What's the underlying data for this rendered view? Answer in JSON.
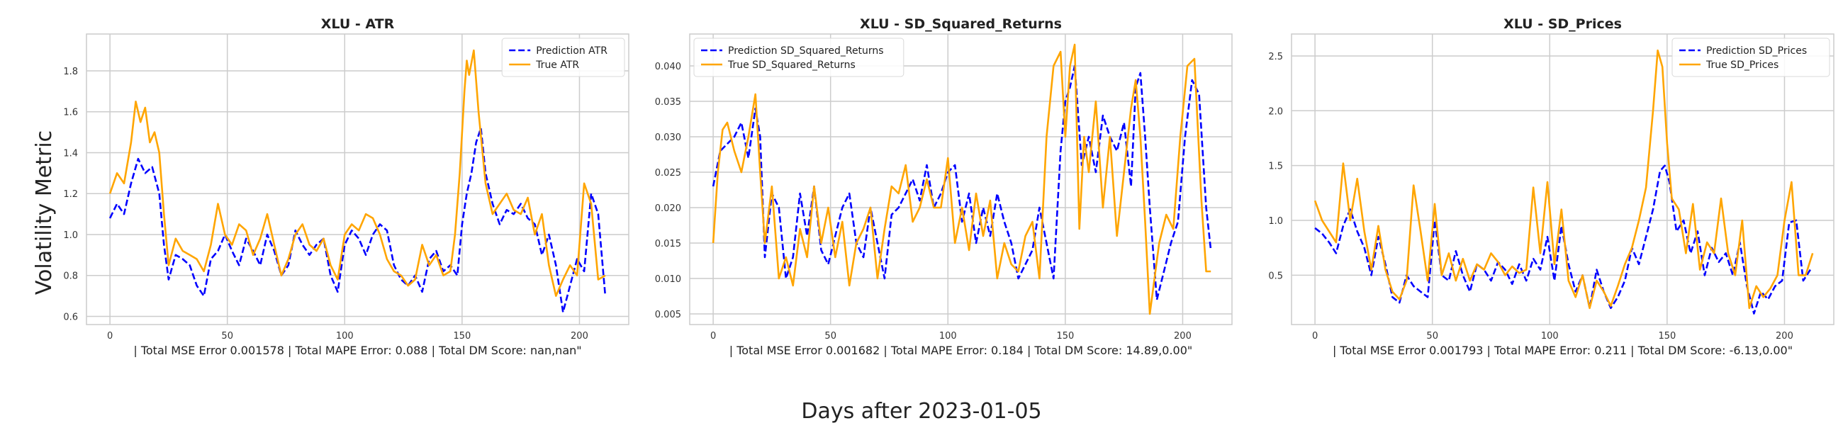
{
  "figure": {
    "ylabel": "Volatility Metric",
    "xlabel": "Days after 2023-01-05"
  },
  "chart_data": [
    {
      "type": "line",
      "title": "XLU - ATR",
      "xlabel": "| Total MSE Error 0.001578 | Total MAPE Error: 0.088 | Total DM Score: nan,nan\"",
      "xlim": [
        -10,
        221
      ],
      "ylim": [
        0.56,
        1.98
      ],
      "xticks": [
        0,
        50,
        100,
        150,
        200
      ],
      "yticks": [
        0.6,
        0.8,
        1.0,
        1.2,
        1.4,
        1.6,
        1.8
      ],
      "tick_format": "1",
      "grid": true,
      "legend_position": "top-right",
      "series": [
        {
          "name": "Prediction ATR",
          "color": "#0000ff",
          "style": "dashed",
          "x": [
            0,
            3,
            6,
            9,
            12,
            15,
            18,
            21,
            23,
            25,
            28,
            31,
            34,
            37,
            40,
            43,
            46,
            49,
            52,
            55,
            58,
            61,
            64,
            67,
            70,
            73,
            76,
            79,
            82,
            85,
            88,
            91,
            94,
            97,
            100,
            103,
            106,
            109,
            112,
            115,
            118,
            121,
            124,
            127,
            130,
            133,
            136,
            139,
            142,
            145,
            148,
            150,
            152,
            154,
            156,
            158,
            160,
            163,
            166,
            169,
            172,
            175,
            178,
            181,
            184,
            187,
            190,
            193,
            196,
            199,
            202,
            205,
            208,
            211
          ],
          "y": [
            1.08,
            1.15,
            1.1,
            1.25,
            1.37,
            1.3,
            1.33,
            1.2,
            0.95,
            0.78,
            0.9,
            0.88,
            0.85,
            0.75,
            0.7,
            0.88,
            0.92,
            1.0,
            0.92,
            0.85,
            0.98,
            0.92,
            0.85,
            1.0,
            0.92,
            0.8,
            0.85,
            1.02,
            0.95,
            0.9,
            0.95,
            0.98,
            0.8,
            0.72,
            0.95,
            1.02,
            0.98,
            0.9,
            1.0,
            1.05,
            1.02,
            0.85,
            0.78,
            0.75,
            0.8,
            0.72,
            0.88,
            0.92,
            0.82,
            0.85,
            0.8,
            1.05,
            1.2,
            1.3,
            1.45,
            1.52,
            1.3,
            1.15,
            1.05,
            1.12,
            1.1,
            1.15,
            1.08,
            1.05,
            0.9,
            1.0,
            0.85,
            0.62,
            0.75,
            0.88,
            0.82,
            1.2,
            1.1,
            0.7
          ]
        },
        {
          "name": "True ATR",
          "color": "#ffa500",
          "style": "solid",
          "x": [
            0,
            3,
            6,
            9,
            11,
            13,
            15,
            17,
            19,
            21,
            23,
            25,
            28,
            31,
            34,
            37,
            40,
            43,
            46,
            49,
            52,
            55,
            58,
            61,
            64,
            67,
            70,
            73,
            76,
            79,
            82,
            85,
            88,
            91,
            94,
            97,
            100,
            103,
            106,
            109,
            112,
            115,
            118,
            121,
            124,
            127,
            130,
            133,
            136,
            139,
            142,
            145,
            147,
            149,
            151,
            152,
            153,
            155,
            157,
            160,
            163,
            166,
            169,
            172,
            175,
            178,
            181,
            184,
            187,
            190,
            193,
            196,
            199,
            202,
            205,
            208,
            211
          ],
          "y": [
            1.2,
            1.3,
            1.25,
            1.45,
            1.65,
            1.55,
            1.62,
            1.45,
            1.5,
            1.4,
            1.1,
            0.85,
            0.98,
            0.92,
            0.9,
            0.88,
            0.82,
            0.95,
            1.15,
            1.0,
            0.95,
            1.05,
            1.02,
            0.9,
            0.98,
            1.1,
            0.95,
            0.8,
            0.88,
            1.0,
            1.05,
            0.95,
            0.92,
            0.98,
            0.85,
            0.78,
            1.0,
            1.05,
            1.02,
            1.1,
            1.08,
            1.0,
            0.88,
            0.82,
            0.8,
            0.75,
            0.78,
            0.95,
            0.85,
            0.9,
            0.8,
            0.82,
            1.0,
            1.3,
            1.7,
            1.85,
            1.78,
            1.9,
            1.6,
            1.25,
            1.1,
            1.15,
            1.2,
            1.12,
            1.1,
            1.18,
            1.0,
            1.1,
            0.85,
            0.7,
            0.78,
            0.85,
            0.8,
            1.25,
            1.15,
            0.78,
            0.8
          ]
        }
      ]
    },
    {
      "type": "line",
      "title": "XLU - SD_Squared_Returns",
      "xlabel": "| Total MSE Error 0.001682 | Total MAPE Error: 0.184 | Total DM Score: 14.89,0.00\"",
      "xlim": [
        -10,
        221
      ],
      "ylim": [
        0.0035,
        0.0445
      ],
      "xticks": [
        0,
        50,
        100,
        150,
        200
      ],
      "yticks": [
        0.005,
        0.01,
        0.015,
        0.02,
        0.025,
        0.03,
        0.035,
        0.04
      ],
      "tick_format": "3",
      "grid": true,
      "legend_position": "top-left",
      "series": [
        {
          "name": "Prediction SD_Squared_Returns",
          "color": "#0000ff",
          "style": "dashed",
          "x": [
            0,
            3,
            6,
            9,
            12,
            15,
            18,
            20,
            22,
            25,
            28,
            31,
            34,
            37,
            40,
            43,
            46,
            49,
            52,
            55,
            58,
            61,
            64,
            67,
            70,
            73,
            76,
            79,
            82,
            85,
            88,
            91,
            94,
            97,
            100,
            103,
            106,
            109,
            112,
            115,
            118,
            121,
            124,
            127,
            130,
            133,
            136,
            139,
            142,
            145,
            148,
            150,
            152,
            154,
            157,
            160,
            163,
            166,
            169,
            172,
            175,
            178,
            180,
            182,
            184,
            186,
            189,
            192,
            195,
            198,
            201,
            204,
            207,
            210,
            212
          ],
          "y": [
            0.023,
            0.028,
            0.029,
            0.03,
            0.032,
            0.027,
            0.034,
            0.03,
            0.013,
            0.022,
            0.02,
            0.01,
            0.013,
            0.022,
            0.016,
            0.023,
            0.014,
            0.012,
            0.016,
            0.02,
            0.022,
            0.015,
            0.013,
            0.02,
            0.015,
            0.01,
            0.019,
            0.02,
            0.022,
            0.024,
            0.021,
            0.026,
            0.02,
            0.022,
            0.025,
            0.026,
            0.018,
            0.022,
            0.015,
            0.02,
            0.016,
            0.022,
            0.018,
            0.015,
            0.01,
            0.012,
            0.014,
            0.02,
            0.015,
            0.01,
            0.028,
            0.035,
            0.037,
            0.04,
            0.026,
            0.03,
            0.025,
            0.033,
            0.03,
            0.028,
            0.032,
            0.023,
            0.037,
            0.039,
            0.03,
            0.02,
            0.007,
            0.011,
            0.015,
            0.018,
            0.03,
            0.038,
            0.036,
            0.02,
            0.014
          ]
        },
        {
          "name": "True SD_Squared_Returns",
          "color": "#ffa500",
          "style": "solid",
          "x": [
            0,
            2,
            4,
            6,
            9,
            12,
            15,
            18,
            20,
            22,
            25,
            28,
            31,
            34,
            37,
            40,
            43,
            46,
            49,
            52,
            55,
            58,
            61,
            64,
            67,
            70,
            73,
            76,
            79,
            82,
            85,
            88,
            91,
            94,
            97,
            100,
            103,
            106,
            109,
            112,
            115,
            118,
            121,
            124,
            127,
            130,
            133,
            136,
            139,
            142,
            145,
            148,
            150,
            152,
            154,
            156,
            158,
            160,
            163,
            166,
            169,
            172,
            175,
            178,
            180,
            182,
            184,
            186,
            188,
            190,
            193,
            196,
            199,
            202,
            205,
            208,
            210,
            212
          ],
          "y": [
            0.015,
            0.025,
            0.031,
            0.032,
            0.028,
            0.025,
            0.03,
            0.036,
            0.025,
            0.015,
            0.023,
            0.01,
            0.013,
            0.009,
            0.017,
            0.013,
            0.023,
            0.015,
            0.02,
            0.013,
            0.018,
            0.009,
            0.015,
            0.017,
            0.02,
            0.01,
            0.017,
            0.023,
            0.022,
            0.026,
            0.018,
            0.02,
            0.024,
            0.02,
            0.02,
            0.027,
            0.015,
            0.02,
            0.014,
            0.022,
            0.016,
            0.021,
            0.01,
            0.015,
            0.012,
            0.011,
            0.016,
            0.018,
            0.01,
            0.03,
            0.04,
            0.042,
            0.03,
            0.04,
            0.043,
            0.017,
            0.03,
            0.025,
            0.035,
            0.02,
            0.03,
            0.016,
            0.025,
            0.034,
            0.038,
            0.03,
            0.018,
            0.005,
            0.01,
            0.015,
            0.019,
            0.017,
            0.03,
            0.04,
            0.041,
            0.021,
            0.011,
            0.011
          ]
        }
      ]
    },
    {
      "type": "line",
      "title": "XLU - SD_Prices",
      "xlabel": "| Total MSE Error 0.001793 | Total MAPE Error: 0.211 | Total DM Score: -6.13,0.00\"",
      "xlim": [
        -10,
        221
      ],
      "ylim": [
        0.05,
        2.7
      ],
      "xticks": [
        0,
        50,
        100,
        150,
        200
      ],
      "yticks": [
        0.5,
        1.0,
        1.5,
        2.0,
        2.5
      ],
      "tick_format": "1",
      "grid": true,
      "legend_position": "top-right",
      "series": [
        {
          "name": "Prediction SD_Prices",
          "color": "#0000ff",
          "style": "dashed",
          "x": [
            0,
            3,
            6,
            9,
            12,
            15,
            18,
            21,
            24,
            27,
            30,
            33,
            36,
            39,
            42,
            45,
            48,
            51,
            54,
            57,
            60,
            63,
            66,
            69,
            72,
            75,
            78,
            81,
            84,
            87,
            90,
            93,
            96,
            99,
            102,
            105,
            108,
            111,
            114,
            117,
            120,
            123,
            126,
            129,
            132,
            135,
            138,
            141,
            144,
            147,
            149,
            151,
            154,
            157,
            160,
            163,
            166,
            169,
            172,
            175,
            178,
            181,
            184,
            187,
            190,
            193,
            196,
            199,
            202,
            205,
            208,
            211
          ],
          "y": [
            0.93,
            0.88,
            0.8,
            0.7,
            0.95,
            1.1,
            0.9,
            0.75,
            0.5,
            0.85,
            0.6,
            0.3,
            0.25,
            0.5,
            0.4,
            0.35,
            0.3,
            1.0,
            0.5,
            0.45,
            0.72,
            0.5,
            0.35,
            0.6,
            0.55,
            0.45,
            0.62,
            0.55,
            0.42,
            0.6,
            0.45,
            0.65,
            0.55,
            0.85,
            0.45,
            0.95,
            0.6,
            0.35,
            0.5,
            0.2,
            0.55,
            0.35,
            0.2,
            0.3,
            0.45,
            0.75,
            0.6,
            0.85,
            1.1,
            1.45,
            1.5,
            1.35,
            0.9,
            1.0,
            0.7,
            0.9,
            0.5,
            0.75,
            0.62,
            0.7,
            0.5,
            0.8,
            0.4,
            0.15,
            0.35,
            0.28,
            0.4,
            0.45,
            0.98,
            1.0,
            0.45,
            0.55
          ]
        },
        {
          "name": "True SD_Prices",
          "color": "#ffa500",
          "style": "solid",
          "x": [
            0,
            3,
            6,
            9,
            12,
            15,
            18,
            21,
            24,
            27,
            30,
            33,
            36,
            39,
            42,
            45,
            48,
            51,
            54,
            57,
            60,
            63,
            66,
            69,
            72,
            75,
            78,
            81,
            84,
            87,
            90,
            93,
            96,
            99,
            102,
            105,
            108,
            111,
            114,
            117,
            120,
            123,
            126,
            129,
            132,
            135,
            138,
            141,
            144,
            146,
            148,
            150,
            152,
            155,
            158,
            161,
            164,
            167,
            170,
            173,
            176,
            179,
            182,
            185,
            188,
            191,
            194,
            197,
            200,
            203,
            206,
            209,
            212
          ],
          "y": [
            1.18,
            1.0,
            0.9,
            0.8,
            1.52,
            1.0,
            1.38,
            0.9,
            0.55,
            0.95,
            0.55,
            0.35,
            0.28,
            0.45,
            1.32,
            0.9,
            0.45,
            1.15,
            0.5,
            0.7,
            0.45,
            0.65,
            0.45,
            0.6,
            0.55,
            0.7,
            0.62,
            0.5,
            0.58,
            0.52,
            0.55,
            1.3,
            0.7,
            1.35,
            0.6,
            1.1,
            0.45,
            0.3,
            0.5,
            0.2,
            0.45,
            0.35,
            0.22,
            0.4,
            0.6,
            0.75,
            1.0,
            1.3,
            2.0,
            2.55,
            2.4,
            1.7,
            1.2,
            1.1,
            0.7,
            1.15,
            0.55,
            0.8,
            0.7,
            1.2,
            0.7,
            0.5,
            1.0,
            0.2,
            0.4,
            0.3,
            0.38,
            0.5,
            1.0,
            1.35,
            0.5,
            0.5,
            0.7
          ]
        }
      ]
    }
  ]
}
